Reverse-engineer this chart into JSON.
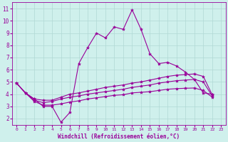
{
  "xlabel": "Windchill (Refroidissement éolien,°C)",
  "xlim": [
    -0.5,
    23.5
  ],
  "ylim": [
    1.5,
    11.5
  ],
  "xticks": [
    0,
    1,
    2,
    3,
    4,
    5,
    6,
    7,
    8,
    9,
    10,
    11,
    12,
    13,
    14,
    15,
    16,
    17,
    18,
    19,
    20,
    21,
    22,
    23
  ],
  "yticks": [
    2,
    3,
    4,
    5,
    6,
    7,
    8,
    9,
    10,
    11
  ],
  "bg_color": "#cff0ec",
  "line_color": "#990099",
  "grid_color": "#b0d8d4",
  "series": [
    [
      4.9,
      4.1,
      3.6,
      3.0,
      3.0,
      1.7,
      2.5,
      6.5,
      7.8,
      9.0,
      8.6,
      9.5,
      9.3,
      10.9,
      9.3,
      7.3,
      6.5,
      6.6,
      6.3,
      5.8,
      5.2,
      4.1,
      4.0
    ],
    [
      4.9,
      4.1,
      3.6,
      3.5,
      3.5,
      3.75,
      4.0,
      4.1,
      4.25,
      4.4,
      4.55,
      4.65,
      4.75,
      4.9,
      5.0,
      5.15,
      5.3,
      5.45,
      5.55,
      5.6,
      5.65,
      5.45,
      3.95
    ],
    [
      4.9,
      4.1,
      3.5,
      3.3,
      3.4,
      3.6,
      3.75,
      3.85,
      4.0,
      4.1,
      4.2,
      4.3,
      4.4,
      4.55,
      4.65,
      4.75,
      4.9,
      5.0,
      5.1,
      5.15,
      5.2,
      5.0,
      3.85
    ],
    [
      4.9,
      4.1,
      3.4,
      3.1,
      3.1,
      3.2,
      3.35,
      3.45,
      3.6,
      3.7,
      3.8,
      3.9,
      3.95,
      4.1,
      4.15,
      4.2,
      4.3,
      4.4,
      4.45,
      4.48,
      4.5,
      4.3,
      3.75
    ]
  ],
  "marker": "*",
  "markersize": 3,
  "linewidth": 0.8
}
